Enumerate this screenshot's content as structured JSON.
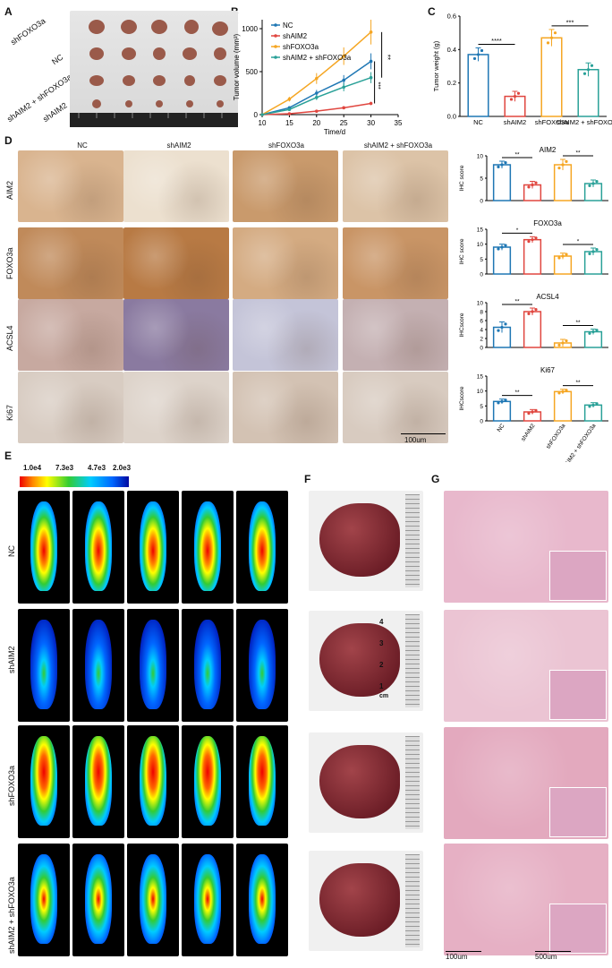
{
  "panels": {
    "A": "A",
    "B": "B",
    "C": "C",
    "D": "D",
    "E": "E",
    "F": "F",
    "G": "G"
  },
  "panelA": {
    "rows": [
      "shFOXO3a",
      "NC",
      "shAIM2 + shFOXO3a",
      "shAIM2"
    ]
  },
  "colors": {
    "NC": "#1f77b4",
    "shAIM2": "#e0463f",
    "shFOXO3a": "#f5a623",
    "combo": "#2aa198"
  },
  "chart_data": [
    {
      "type": "line",
      "panel": "B",
      "xlabel": "Time/d",
      "ylabel": "Tumor volume (mm³)",
      "xlim": [
        10,
        32
      ],
      "ylim": [
        0,
        1000
      ],
      "xticks": [
        "10",
        "15",
        "20",
        "25",
        "30",
        "35"
      ],
      "yticks": [
        "0",
        "500",
        "1000"
      ],
      "x": [
        10,
        15,
        20,
        25,
        30
      ],
      "series": [
        {
          "name": "NC",
          "color": "#1f77b4",
          "values": [
            0,
            80,
            250,
            400,
            620
          ]
        },
        {
          "name": "shAIM2",
          "color": "#e0463f",
          "values": [
            0,
            10,
            40,
            80,
            130
          ]
        },
        {
          "name": "shFOXO3a",
          "color": "#f5a623",
          "values": [
            0,
            180,
            420,
            680,
            960
          ]
        },
        {
          "name": "shAIM2 + shFOXO3a",
          "color": "#2aa198",
          "values": [
            0,
            60,
            200,
            320,
            430
          ]
        }
      ],
      "annotations": [
        "**",
        "***"
      ]
    },
    {
      "type": "bar",
      "panel": "C",
      "ylabel": "Tumor weight (g)",
      "ylim": [
        0,
        0.6
      ],
      "yticks": [
        "0.0",
        "0.2",
        "0.4",
        "0.6"
      ],
      "categories": [
        "NC",
        "shAIM2",
        "shFOXO3a",
        "shAIM2 + shFOXO3a"
      ],
      "values": [
        0.37,
        0.12,
        0.47,
        0.28
      ],
      "errors": [
        0.04,
        0.03,
        0.05,
        0.04
      ],
      "annotations": [
        "****",
        "***"
      ]
    },
    {
      "type": "bar",
      "panel": "D-AIM2",
      "title": "AIM2",
      "ylabel": "IHC score",
      "ylim": [
        0,
        10
      ],
      "yticks": [
        "0",
        "5",
        "10"
      ],
      "categories": [
        "NC",
        "shAIM2",
        "shFOXO3a",
        "shAIM2 + shFOXO3a"
      ],
      "values": [
        8,
        3.5,
        8,
        3.8
      ],
      "errors": [
        0.8,
        0.8,
        1.2,
        0.8
      ],
      "annotations": [
        "**",
        "**"
      ]
    },
    {
      "type": "bar",
      "panel": "D-FOXO3a",
      "title": "FOXO3a",
      "ylabel": "IHC score",
      "ylim": [
        0,
        15
      ],
      "yticks": [
        "0",
        "5",
        "10",
        "15"
      ],
      "categories": [
        "NC",
        "shAIM2",
        "shFOXO3a",
        "shAIM2 + shFOXO3a"
      ],
      "values": [
        9,
        11.5,
        6,
        7.5
      ],
      "errors": [
        1,
        1,
        1,
        1.2
      ],
      "annotations": [
        "*",
        "*"
      ]
    },
    {
      "type": "bar",
      "panel": "D-ACSL4",
      "title": "ACSL4",
      "ylabel": "IHCscore",
      "ylim": [
        0,
        10
      ],
      "yticks": [
        "0",
        "2",
        "4",
        "6",
        "8",
        "10"
      ],
      "categories": [
        "NC",
        "shAIM2",
        "shFOXO3a",
        "shAIM2 + shFOXO3a"
      ],
      "values": [
        4.5,
        8,
        1,
        3.5
      ],
      "errors": [
        1.2,
        0.8,
        0.8,
        0.6
      ],
      "annotations": [
        "**",
        "**"
      ]
    },
    {
      "type": "bar",
      "panel": "D-Ki67",
      "title": "Ki67",
      "ylabel": "IHCscore",
      "ylim": [
        0,
        15
      ],
      "yticks": [
        "0",
        "5",
        "10",
        "15"
      ],
      "categories": [
        "NC",
        "shAIM2",
        "shFOXO3a",
        "shAIM2 + shFOXO3a"
      ],
      "values": [
        6.5,
        3,
        9.8,
        5.3
      ],
      "errors": [
        0.8,
        0.8,
        0.8,
        0.8
      ],
      "annotations": [
        "**",
        "**"
      ]
    }
  ],
  "panelD": {
    "cols": [
      "NC",
      "shAIM2",
      "shFOXO3a",
      "shAIM2 + shFOXO3a"
    ],
    "rows": [
      "AIM2",
      "FOXO3a",
      "ACSL4",
      "Ki67"
    ],
    "scale": "100um"
  },
  "panelE": {
    "scale": [
      "1.0e4",
      "7.3e3",
      "4.7e3",
      "2.0e3"
    ],
    "rows": [
      "NC",
      "shAIM2",
      "shFOXO3a",
      "shAIM2 + shFOXO3a"
    ]
  },
  "panelF": {
    "ruler_marks": [
      "4",
      "3",
      "2",
      "1"
    ],
    "cm": "cm"
  },
  "panelG": {
    "scale_left": "100um",
    "scale_right": "500um"
  }
}
